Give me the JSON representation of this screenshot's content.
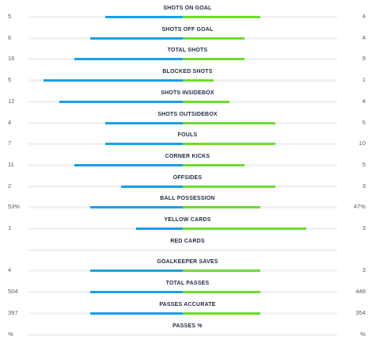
{
  "colors": {
    "home_bar": "#1aa0e6",
    "away_bar": "#6ddc2e",
    "track": "#f0f1f4",
    "label": "#1f2a44"
  },
  "stats": [
    {
      "label": "SHOTS ON GOAL",
      "home": "5",
      "away": "4",
      "home_share": 0.5,
      "away_share": 0.5
    },
    {
      "label": "SHOTS OFF GOAL",
      "home": "6",
      "away": "4",
      "home_share": 0.6,
      "away_share": 0.4
    },
    {
      "label": "TOTAL SHOTS",
      "home": "16",
      "away": "9",
      "home_share": 0.7,
      "away_share": 0.4
    },
    {
      "label": "BLOCKED SHOTS",
      "home": "5",
      "away": "1",
      "home_share": 0.9,
      "away_share": 0.2
    },
    {
      "label": "SHOTS INSIDEBOX",
      "home": "12",
      "away": "4",
      "home_share": 0.8,
      "away_share": 0.3
    },
    {
      "label": "SHOTS OUTSIDEBOX",
      "home": "4",
      "away": "5",
      "home_share": 0.5,
      "away_share": 0.6
    },
    {
      "label": "FOULS",
      "home": "7",
      "away": "10",
      "home_share": 0.5,
      "away_share": 0.6
    },
    {
      "label": "CORNER KICKS",
      "home": "11",
      "away": "5",
      "home_share": 0.7,
      "away_share": 0.4
    },
    {
      "label": "OFFSIDES",
      "home": "2",
      "away": "3",
      "home_share": 0.4,
      "away_share": 0.6
    },
    {
      "label": "BALL POSSESSION",
      "home": "53%",
      "away": "47%",
      "home_share": 0.6,
      "away_share": 0.5
    },
    {
      "label": "YELLOW CARDS",
      "home": "1",
      "away": "3",
      "home_share": 0.3,
      "away_share": 0.8
    },
    {
      "label": "RED CARDS",
      "home": "",
      "away": "",
      "home_share": 0,
      "away_share": 0
    },
    {
      "label": "GOALKEEPER SAVES",
      "home": "4",
      "away": "3",
      "home_share": 0.6,
      "away_share": 0.5
    },
    {
      "label": "TOTAL PASSES",
      "home": "504",
      "away": "448",
      "home_share": 0.6,
      "away_share": 0.5
    },
    {
      "label": "PASSES ACCURATE",
      "home": "397",
      "away": "354",
      "home_share": 0.6,
      "away_share": 0.5
    },
    {
      "label": "PASSES %",
      "home": "%",
      "away": "%",
      "home_share": 0,
      "away_share": 0
    }
  ]
}
